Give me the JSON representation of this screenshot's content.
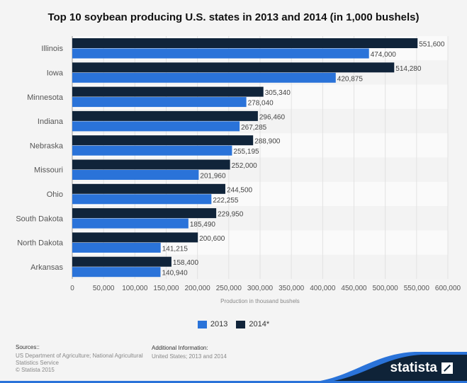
{
  "title": "Top 10 soybean producing U.S. states in 2013 and 2014 (in 1,000 bushels)",
  "chart_data": {
    "type": "bar",
    "orientation": "horizontal",
    "categories": [
      "Illinois",
      "Iowa",
      "Minnesota",
      "Indiana",
      "Nebraska",
      "Missouri",
      "Ohio",
      "South Dakota",
      "North Dakota",
      "Arkansas"
    ],
    "series": [
      {
        "name": "2014*",
        "color": "#10243a",
        "values": [
          551600,
          514280,
          305340,
          296460,
          288900,
          252000,
          244500,
          229950,
          200600,
          158400
        ]
      },
      {
        "name": "2013",
        "color": "#2a73d9",
        "values": [
          474000,
          420875,
          278040,
          267285,
          255195,
          201960,
          222255,
          185490,
          141215,
          140940
        ]
      }
    ],
    "data_labels_2014": [
      "551,600",
      "514,280",
      "305,340",
      "296,460",
      "288,900",
      "252,000",
      "244,500",
      "229,950",
      "200,600",
      "158,400"
    ],
    "data_labels_2013": [
      "474,000",
      "420,875",
      "278,040",
      "267,285",
      "255,195",
      "201,960",
      "222,255",
      "185,490",
      "141,215",
      "140,940"
    ],
    "xlim": [
      0,
      600000
    ],
    "x_ticks": [
      0,
      50000,
      100000,
      150000,
      200000,
      250000,
      300000,
      350000,
      400000,
      450000,
      500000,
      550000,
      600000
    ],
    "x_tick_labels": [
      "0",
      "50,000",
      "100,000",
      "150,000",
      "200,000",
      "250,000",
      "300,000",
      "350,000",
      "400,000",
      "450,000",
      "500,000",
      "550,000",
      "600,000"
    ],
    "xlabel": "Production in thousand bushels",
    "ylabel": "",
    "grid": true,
    "legend_position": "bottom-center"
  },
  "legend": {
    "item_2013": "2013",
    "item_2014": "2014*"
  },
  "footer": {
    "sources_heading": "Sources::",
    "sources_line1": "US Department of Agriculture; National Agricultural",
    "sources_line2": "Statistics Service",
    "copyright": "© Statista 2015",
    "additional_heading": "Additional Information:",
    "additional_text": "United States; 2013 and 2014"
  },
  "brand": "statista"
}
